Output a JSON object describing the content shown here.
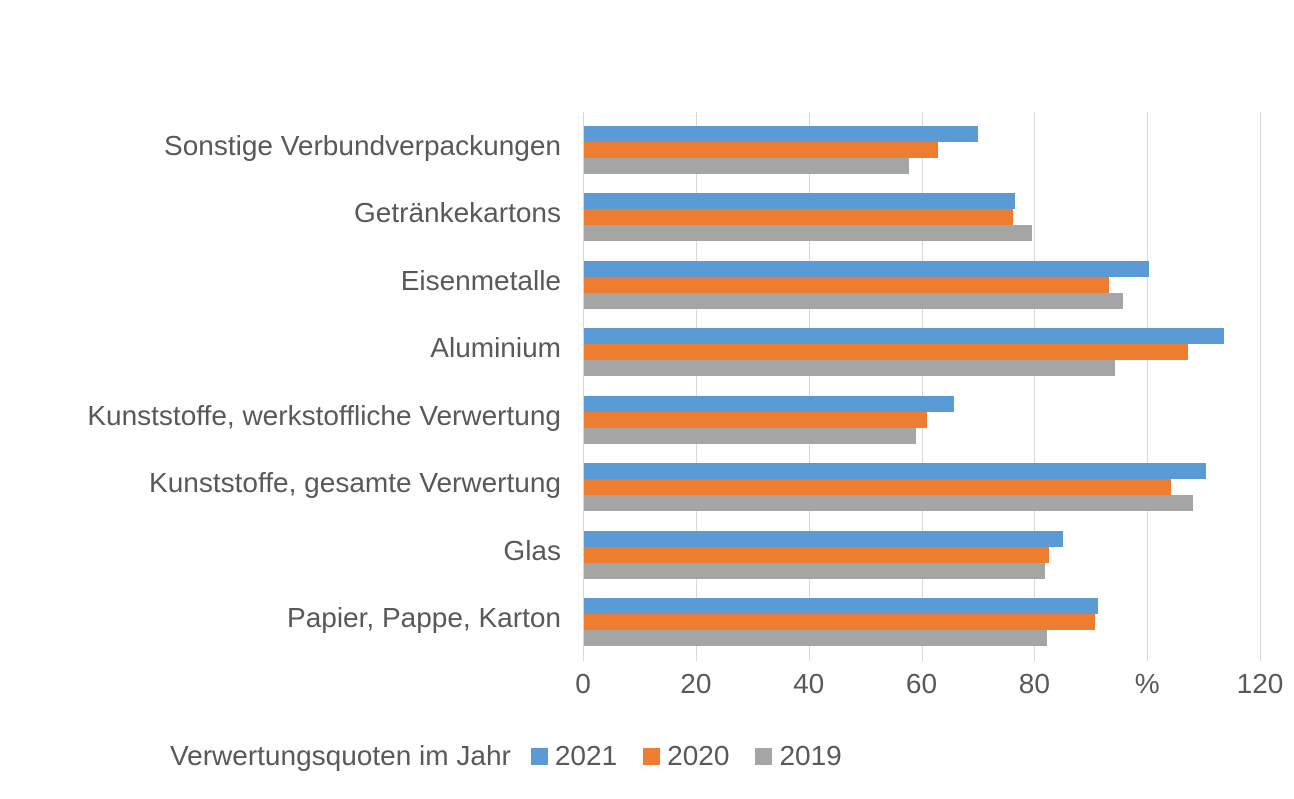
{
  "chart_data": {
    "type": "bar",
    "orientation": "horizontal",
    "categories": [
      "Sonstige Verbundverpackungen",
      "Getränkekartons",
      "Eisenmetalle",
      "Aluminium",
      "Kunststoffe, werkstoffliche Verwertung",
      "Kunststoffe, gesamte Verwertung",
      "Glas",
      "Papier, Pappe, Karton"
    ],
    "series": [
      {
        "name": "2021",
        "color": "#5B9BD5",
        "values": [
          69.9,
          76.4,
          100.2,
          113.5,
          65.6,
          110.2,
          84.9,
          91.1
        ]
      },
      {
        "name": "2020",
        "color": "#ED7D31",
        "values": [
          62.8,
          76.1,
          93.1,
          107.1,
          60.8,
          104.1,
          82.4,
          90.6
        ]
      },
      {
        "name": "2019",
        "color": "#A5A5A5",
        "values": [
          57.6,
          79.4,
          95.5,
          94.1,
          58.9,
          108.0,
          81.7,
          82.1
        ]
      }
    ],
    "x_axis": {
      "tick_labels": [
        "0",
        "20",
        "40",
        "60",
        "80",
        "%",
        "120"
      ],
      "tick_values": [
        0,
        20,
        40,
        60,
        80,
        100,
        120
      ],
      "min": 0,
      "max": 120,
      "unit": "%"
    },
    "legend": {
      "title": "Verwertungsquoten im Jahr",
      "entries": [
        "2021",
        "2020",
        "2019"
      ],
      "position": "bottom"
    },
    "grid": true,
    "ylabel": "",
    "xlabel": ""
  },
  "colors": {
    "text": "#595959",
    "gridline": "#D9D9D9",
    "background": "#FFFFFF",
    "series_2021": "#5B9BD5",
    "series_2020": "#ED7D31",
    "series_2019": "#A5A5A5"
  }
}
